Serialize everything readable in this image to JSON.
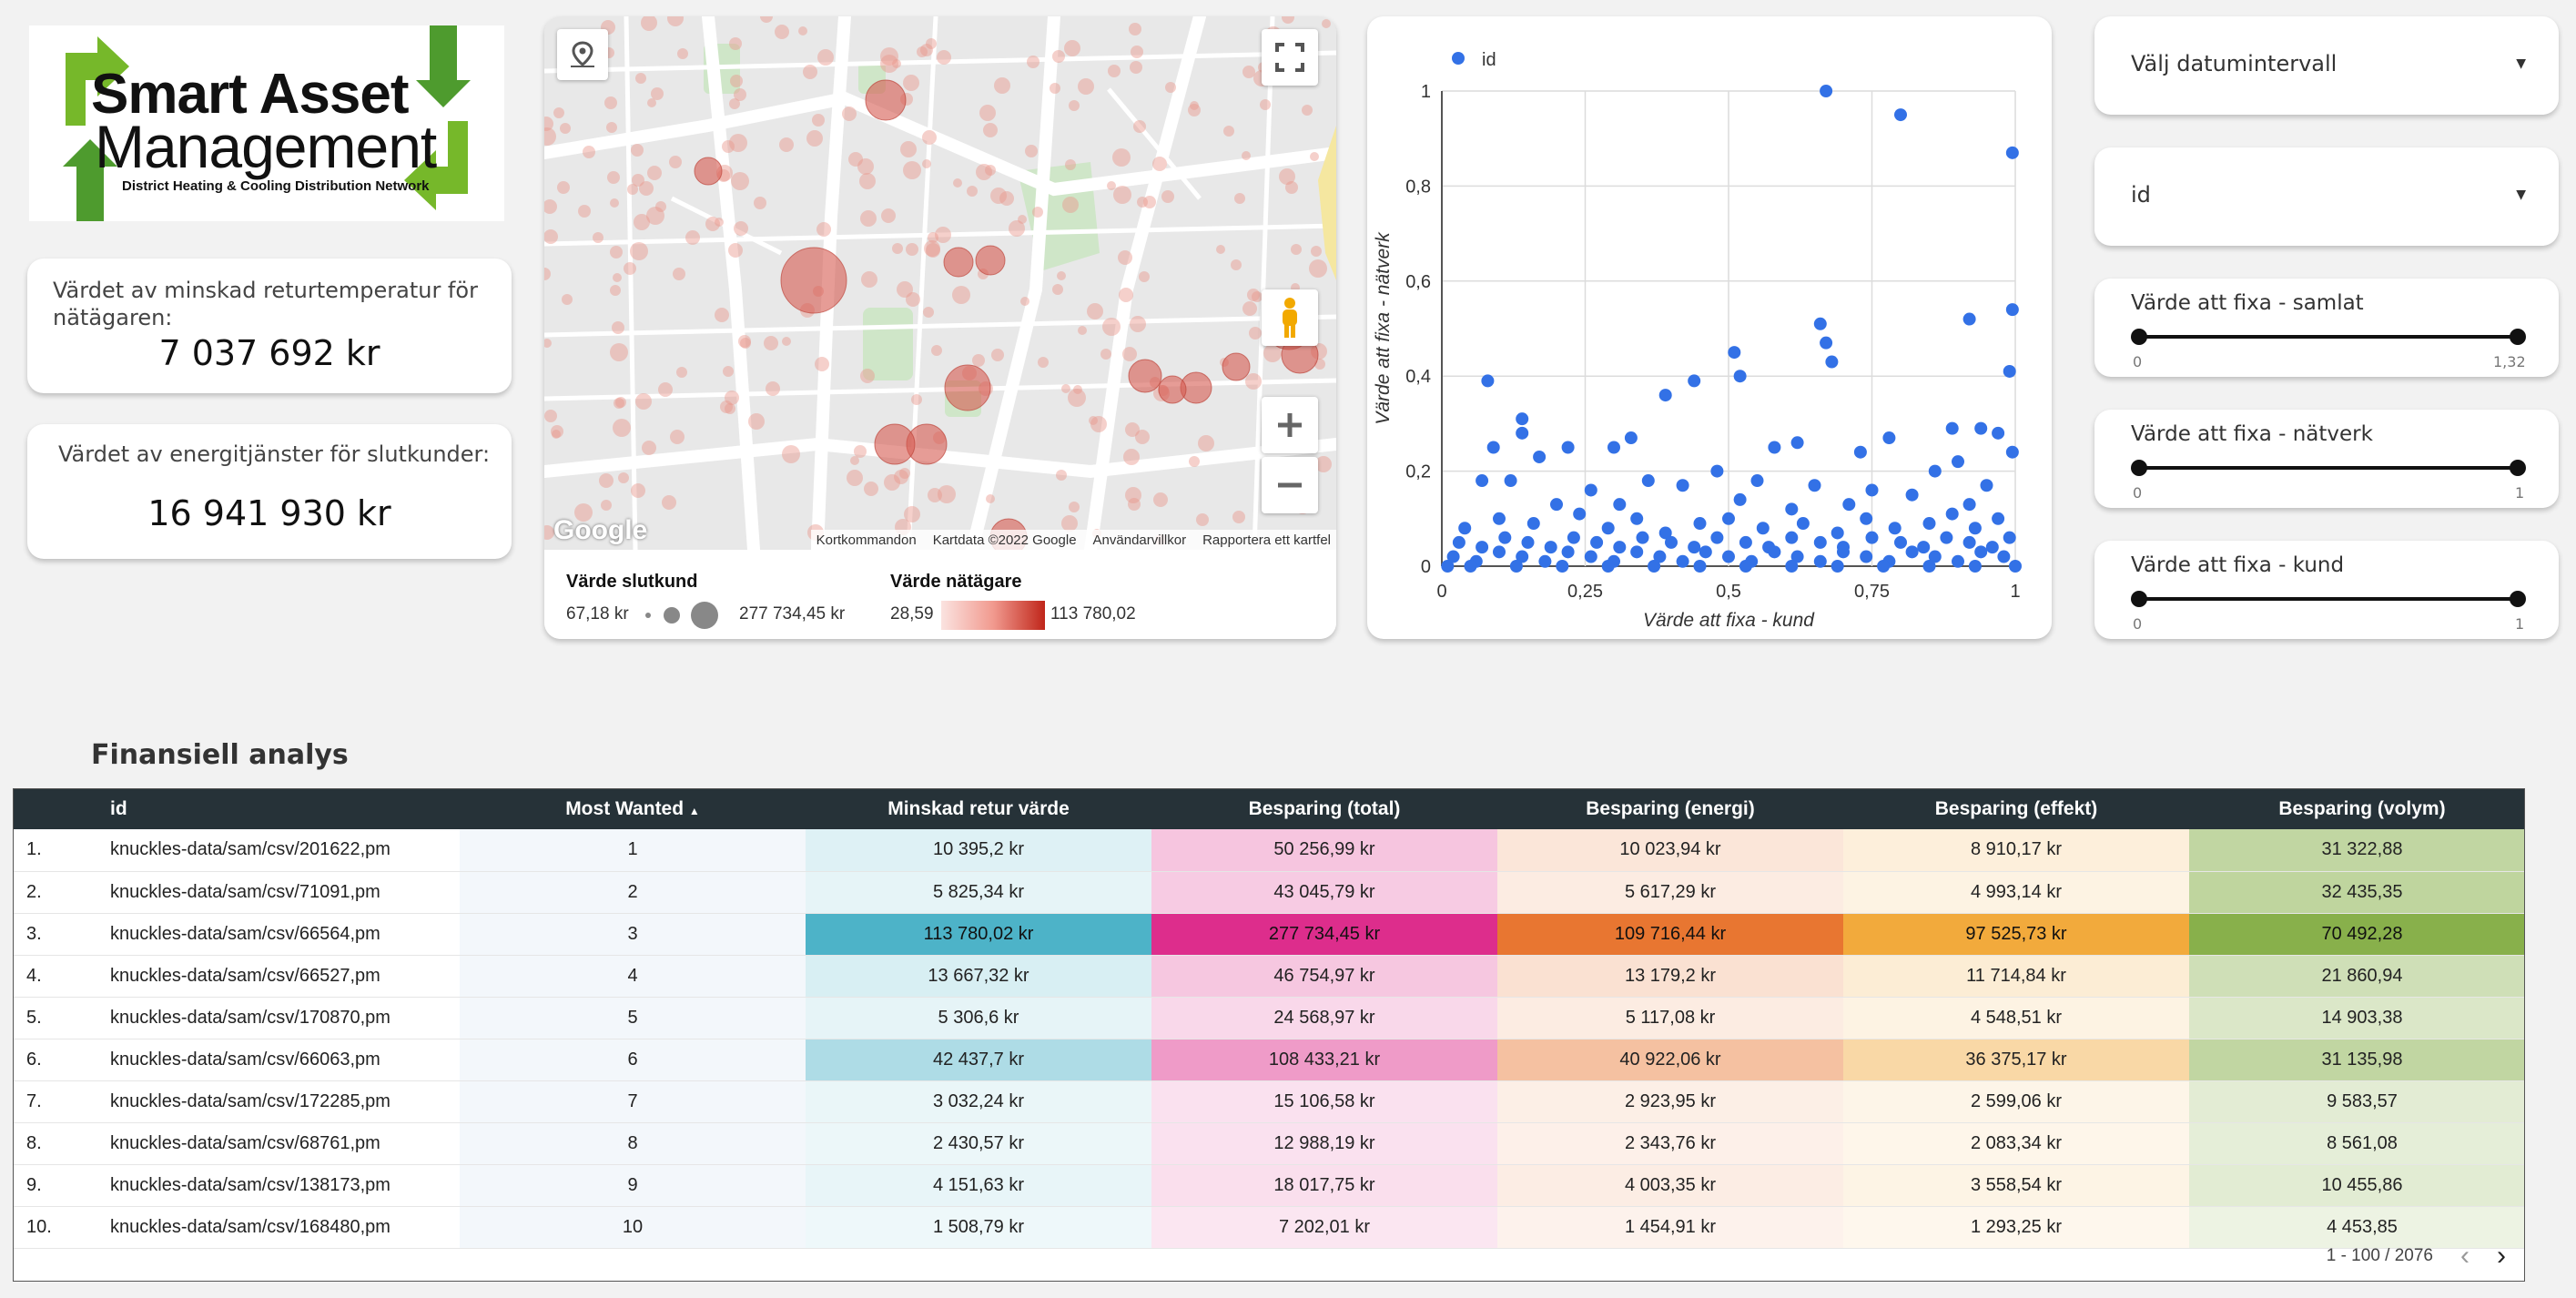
{
  "logo": {
    "line1": "Smart Asset",
    "line2": "Management",
    "tagline": "District Heating & Cooling Distribution Network"
  },
  "kpis": [
    {
      "label": "Värdet av minskad returtemperatur för nätägaren:",
      "value": "7 037 692 kr"
    },
    {
      "label": "Värdet av energitjänster för slutkunder:",
      "value": "16 941 930 kr"
    }
  ],
  "map": {
    "watermark": "Google",
    "attribution": [
      "Kortkommandon",
      "Kartdata ©2022 Google",
      "Användarvillkor",
      "Rapportera ett kartfel"
    ],
    "legend": {
      "size_title": "Värde slutkund",
      "size_min": "67,18 kr",
      "size_max": "277 734,45 kr",
      "color_title": "Värde nätägare",
      "color_min": "28,59",
      "color_max": "113 780,02"
    }
  },
  "controls": {
    "date_range": {
      "label": "Välj datumintervall"
    },
    "dimension": {
      "label": "id"
    },
    "sliders": [
      {
        "label": "Värde att fixa - samlat",
        "min": "0",
        "max": "1,32"
      },
      {
        "label": "Värde att fixa - nätverk",
        "min": "0",
        "max": "1"
      },
      {
        "label": "Värde att fixa - kund",
        "min": "0",
        "max": "1"
      }
    ]
  },
  "colors": {
    "header_bg": "#263238",
    "scatter_point": "#3371e6",
    "minskad": "#4db3c8",
    "total": "#dd2d8c",
    "energi": "#e87631",
    "effekt": "#f2aa3c",
    "volym": "#88b04b"
  },
  "chart_data": {
    "type": "scatter",
    "legend": [
      "id"
    ],
    "xlabel": "Värde att fixa - kund",
    "ylabel": "Värde att fixa - nätverk",
    "xlim": [
      0,
      1
    ],
    "ylim": [
      0,
      1
    ],
    "x_ticks": [
      "0",
      "0,25",
      "0,5",
      "0,75",
      "1"
    ],
    "y_ticks": [
      "0",
      "0,2",
      "0,4",
      "0,6",
      "0,8",
      "1"
    ],
    "grid": true,
    "legend_position": "top-left",
    "series": [
      {
        "name": "id",
        "points": [
          [
            0.67,
            1.0
          ],
          [
            0.8,
            0.95
          ],
          [
            0.995,
            0.87
          ],
          [
            0.66,
            0.51
          ],
          [
            0.995,
            0.54
          ],
          [
            0.92,
            0.52
          ],
          [
            0.67,
            0.47
          ],
          [
            0.68,
            0.43
          ],
          [
            0.51,
            0.45
          ],
          [
            0.52,
            0.4
          ],
          [
            0.44,
            0.39
          ],
          [
            0.39,
            0.36
          ],
          [
            0.08,
            0.39
          ],
          [
            0.14,
            0.31
          ],
          [
            0.99,
            0.41
          ],
          [
            0.97,
            0.28
          ],
          [
            0.94,
            0.29
          ],
          [
            0.89,
            0.29
          ],
          [
            0.62,
            0.26
          ],
          [
            0.58,
            0.25
          ],
          [
            0.78,
            0.27
          ],
          [
            0.73,
            0.24
          ],
          [
            0.33,
            0.27
          ],
          [
            0.3,
            0.25
          ],
          [
            0.22,
            0.25
          ],
          [
            0.17,
            0.23
          ],
          [
            0.14,
            0.28
          ],
          [
            0.09,
            0.25
          ],
          [
            0.995,
            0.24
          ],
          [
            0.9,
            0.22
          ],
          [
            0.48,
            0.2
          ],
          [
            0.55,
            0.18
          ],
          [
            0.86,
            0.2
          ],
          [
            0.12,
            0.18
          ],
          [
            0.07,
            0.18
          ],
          [
            0.26,
            0.16
          ],
          [
            0.36,
            0.18
          ],
          [
            0.42,
            0.17
          ],
          [
            0.65,
            0.17
          ],
          [
            0.75,
            0.16
          ],
          [
            0.82,
            0.15
          ],
          [
            0.95,
            0.17
          ],
          [
            0.2,
            0.13
          ],
          [
            0.31,
            0.13
          ],
          [
            0.52,
            0.14
          ],
          [
            0.61,
            0.12
          ],
          [
            0.71,
            0.13
          ],
          [
            0.92,
            0.13
          ],
          [
            0.04,
            0.08
          ],
          [
            0.1,
            0.1
          ],
          [
            0.16,
            0.09
          ],
          [
            0.24,
            0.11
          ],
          [
            0.29,
            0.08
          ],
          [
            0.34,
            0.1
          ],
          [
            0.39,
            0.07
          ],
          [
            0.45,
            0.09
          ],
          [
            0.5,
            0.1
          ],
          [
            0.56,
            0.08
          ],
          [
            0.63,
            0.09
          ],
          [
            0.69,
            0.07
          ],
          [
            0.74,
            0.1
          ],
          [
            0.79,
            0.08
          ],
          [
            0.85,
            0.09
          ],
          [
            0.89,
            0.11
          ],
          [
            0.93,
            0.08
          ],
          [
            0.97,
            0.1
          ],
          [
            0.03,
            0.05
          ],
          [
            0.07,
            0.04
          ],
          [
            0.11,
            0.06
          ],
          [
            0.15,
            0.05
          ],
          [
            0.19,
            0.04
          ],
          [
            0.23,
            0.06
          ],
          [
            0.27,
            0.05
          ],
          [
            0.31,
            0.04
          ],
          [
            0.35,
            0.06
          ],
          [
            0.4,
            0.05
          ],
          [
            0.44,
            0.04
          ],
          [
            0.48,
            0.06
          ],
          [
            0.53,
            0.05
          ],
          [
            0.57,
            0.04
          ],
          [
            0.61,
            0.06
          ],
          [
            0.66,
            0.05
          ],
          [
            0.7,
            0.04
          ],
          [
            0.75,
            0.06
          ],
          [
            0.8,
            0.05
          ],
          [
            0.84,
            0.04
          ],
          [
            0.88,
            0.06
          ],
          [
            0.92,
            0.05
          ],
          [
            0.96,
            0.04
          ],
          [
            0.99,
            0.06
          ],
          [
            0.02,
            0.02
          ],
          [
            0.06,
            0.01
          ],
          [
            0.1,
            0.03
          ],
          [
            0.14,
            0.02
          ],
          [
            0.18,
            0.01
          ],
          [
            0.22,
            0.03
          ],
          [
            0.26,
            0.02
          ],
          [
            0.3,
            0.01
          ],
          [
            0.34,
            0.03
          ],
          [
            0.38,
            0.02
          ],
          [
            0.42,
            0.01
          ],
          [
            0.46,
            0.03
          ],
          [
            0.5,
            0.02
          ],
          [
            0.54,
            0.01
          ],
          [
            0.58,
            0.03
          ],
          [
            0.62,
            0.02
          ],
          [
            0.66,
            0.01
          ],
          [
            0.7,
            0.03
          ],
          [
            0.74,
            0.02
          ],
          [
            0.78,
            0.01
          ],
          [
            0.82,
            0.03
          ],
          [
            0.86,
            0.02
          ],
          [
            0.9,
            0.01
          ],
          [
            0.94,
            0.03
          ],
          [
            0.98,
            0.02
          ],
          [
            0.01,
            0.0
          ],
          [
            0.05,
            0.0
          ],
          [
            0.13,
            0.0
          ],
          [
            0.21,
            0.0
          ],
          [
            0.29,
            0.0
          ],
          [
            0.37,
            0.0
          ],
          [
            0.45,
            0.0
          ],
          [
            0.53,
            0.0
          ],
          [
            0.61,
            0.0
          ],
          [
            0.69,
            0.0
          ],
          [
            0.77,
            0.0
          ],
          [
            0.85,
            0.0
          ],
          [
            0.93,
            0.0
          ],
          [
            1.0,
            0.0
          ]
        ]
      }
    ]
  },
  "table": {
    "title": "Finansiell analys",
    "columns": [
      "id",
      "Most Wanted",
      "Minskad retur värde",
      "Besparing (total)",
      "Besparing (energi)",
      "Besparing (effekt)",
      "Besparing (volym)"
    ],
    "sort_indicator": "▲",
    "rows": [
      {
        "n": "1.",
        "id": "knuckles-data/sam/csv/201622,pm",
        "mw": "1",
        "minskad": "10 395,2 kr",
        "total": "50 256,99 kr",
        "energi": "10 023,94 kr",
        "effekt": "8 910,17 kr",
        "volym": "31 322,88",
        "level": {
          "minskad": 0.09,
          "total": 0.18,
          "energi": 0.09,
          "effekt": 0.09,
          "volym": 0.44
        }
      },
      {
        "n": "2.",
        "id": "knuckles-data/sam/csv/71091,pm",
        "mw": "2",
        "minskad": "5 825,34 kr",
        "total": "43 045,79 kr",
        "energi": "5 617,29 kr",
        "effekt": "4 993,14 kr",
        "volym": "32 435,35",
        "level": {
          "minskad": 0.05,
          "total": 0.15,
          "energi": 0.05,
          "effekt": 0.05,
          "volym": 0.46
        }
      },
      {
        "n": "3.",
        "id": "knuckles-data/sam/csv/66564,pm",
        "mw": "3",
        "minskad": "113 780,02 kr",
        "total": "277 734,45 kr",
        "energi": "109 716,44 kr",
        "effekt": "97 525,73 kr",
        "volym": "70 492,28",
        "level": {
          "minskad": 1,
          "total": 1,
          "energi": 1,
          "effekt": 1,
          "volym": 1
        }
      },
      {
        "n": "4.",
        "id": "knuckles-data/sam/csv/66527,pm",
        "mw": "4",
        "minskad": "13 667,32 kr",
        "total": "46 754,97 kr",
        "energi": "13 179,2 kr",
        "effekt": "11 714,84 kr",
        "volym": "21 860,94",
        "level": {
          "minskad": 0.12,
          "total": 0.17,
          "energi": 0.12,
          "effekt": 0.12,
          "volym": 0.31
        }
      },
      {
        "n": "5.",
        "id": "knuckles-data/sam/csv/170870,pm",
        "mw": "5",
        "minskad": "5 306,6 kr",
        "total": "24 568,97 kr",
        "energi": "5 117,08 kr",
        "effekt": "4 548,51 kr",
        "volym": "14 903,38",
        "level": {
          "minskad": 0.05,
          "total": 0.09,
          "energi": 0.05,
          "effekt": 0.05,
          "volym": 0.21
        }
      },
      {
        "n": "6.",
        "id": "knuckles-data/sam/csv/66063,pm",
        "mw": "6",
        "minskad": "42 437,7 kr",
        "total": "108 433,21 kr",
        "energi": "40 922,06 kr",
        "effekt": "36 375,17 kr",
        "volym": "31 135,98",
        "level": {
          "minskad": 0.37,
          "total": 0.39,
          "energi": 0.37,
          "effekt": 0.37,
          "volym": 0.44
        }
      },
      {
        "n": "7.",
        "id": "knuckles-data/sam/csv/172285,pm",
        "mw": "7",
        "minskad": "3 032,24 kr",
        "total": "15 106,58 kr",
        "energi": "2 923,95 kr",
        "effekt": "2 599,06 kr",
        "volym": "9 583,57",
        "level": {
          "minskad": 0.03,
          "total": 0.05,
          "energi": 0.03,
          "effekt": 0.03,
          "volym": 0.14
        }
      },
      {
        "n": "8.",
        "id": "knuckles-data/sam/csv/68761,pm",
        "mw": "8",
        "minskad": "2 430,57 kr",
        "total": "12 988,19 kr",
        "energi": "2 343,76 kr",
        "effekt": "2 083,34 kr",
        "volym": "8 561,08",
        "level": {
          "minskad": 0.02,
          "total": 0.05,
          "energi": 0.02,
          "effekt": 0.02,
          "volym": 0.12
        }
      },
      {
        "n": "9.",
        "id": "knuckles-data/sam/csv/138173,pm",
        "mw": "9",
        "minskad": "4 151,63 kr",
        "total": "18 017,75 kr",
        "energi": "4 003,35 kr",
        "effekt": "3 558,54 kr",
        "volym": "10 455,86",
        "level": {
          "minskad": 0.04,
          "total": 0.06,
          "energi": 0.04,
          "effekt": 0.04,
          "volym": 0.15
        }
      },
      {
        "n": "10.",
        "id": "knuckles-data/sam/csv/168480,pm",
        "mw": "10",
        "minskad": "1 508,79 kr",
        "total": "7 202,01 kr",
        "energi": "1 454,91 kr",
        "effekt": "1 293,25 kr",
        "volym": "4 453,85",
        "level": {
          "minskad": 0.01,
          "total": 0.03,
          "energi": 0.01,
          "effekt": 0.01,
          "volym": 0.06
        }
      }
    ],
    "pager": {
      "range": "1 - 100 / 2076"
    }
  }
}
